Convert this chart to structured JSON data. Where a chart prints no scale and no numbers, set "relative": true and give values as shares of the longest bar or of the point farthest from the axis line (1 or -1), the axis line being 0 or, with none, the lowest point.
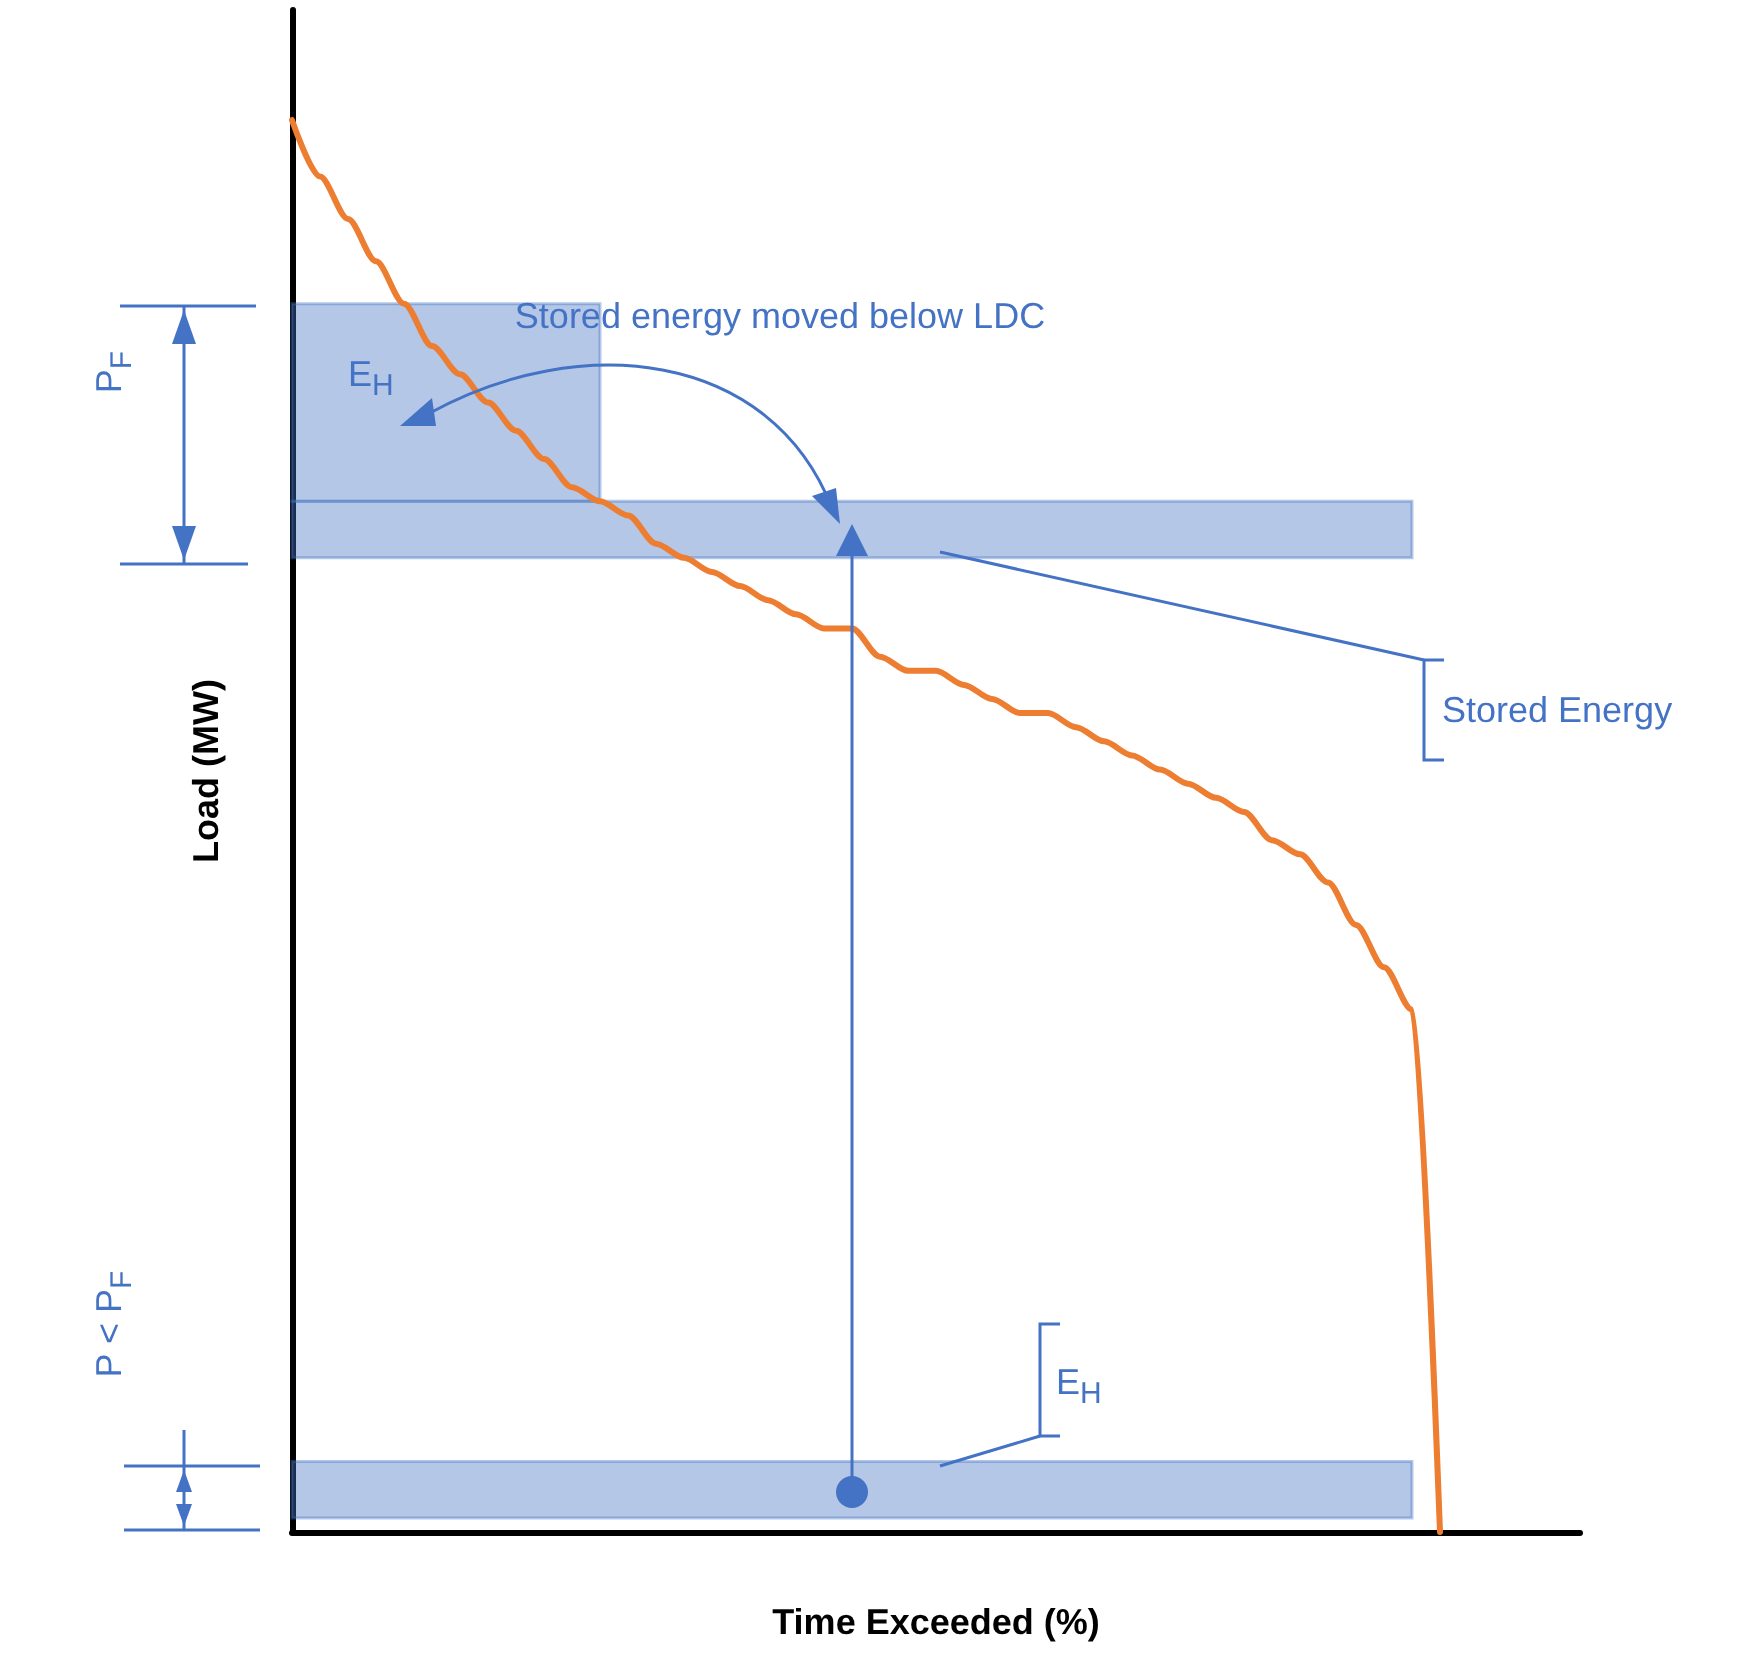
{
  "chart_data": {
    "type": "line",
    "relative": true,
    "xlabel": "Time Exceeded (%)",
    "ylabel": "Load (MW)",
    "categories": [
      null,
      null,
      null,
      null,
      null,
      null,
      null,
      null,
      null,
      null,
      null,
      null,
      null,
      null,
      null,
      null,
      null,
      null,
      null,
      null,
      null,
      null,
      null,
      null,
      null,
      null,
      null,
      null,
      null,
      null,
      null,
      null,
      null,
      null,
      null,
      null,
      null,
      null,
      null,
      null,
      null,
      null,
      null,
      null,
      null,
      null,
      null
    ],
    "series": [
      {
        "color": "#ed7d31",
        "values": [
          1.0,
          0.96,
          0.93,
          0.9,
          0.87,
          0.84,
          0.82,
          0.8,
          0.78,
          0.76,
          0.74,
          0.73,
          0.72,
          0.7,
          0.69,
          0.68,
          0.67,
          0.66,
          0.65,
          0.64,
          0.64,
          0.62,
          0.61,
          0.61,
          0.6,
          0.59,
          0.58,
          0.58,
          0.57,
          0.56,
          0.55,
          0.54,
          0.53,
          0.52,
          0.51,
          0.49,
          0.48,
          0.46,
          0.43,
          0.4,
          0.37,
          0,
          null,
          null,
          null,
          null,
          null
        ]
      }
    ],
    "marker": "none",
    "line_style": "solid",
    "bands": [
      {
        "axis": "y",
        "from": 0.73,
        "to": 0.87,
        "label": "E$_{H}$",
        "color": "#4472c4"
      },
      {
        "axis": "y",
        "from": 0.69,
        "to": 0.73,
        "color": "#4472c4"
      },
      {
        "axis": "y",
        "from": 0.01,
        "to": 0.05,
        "color": "#4472c4"
      }
    ],
    "annotations": [
      "Stored energy moved below LDC",
      "Stored Energy",
      "E$_{H}$",
      "P$_{F}$",
      "P < P$_{F}$"
    ]
  }
}
